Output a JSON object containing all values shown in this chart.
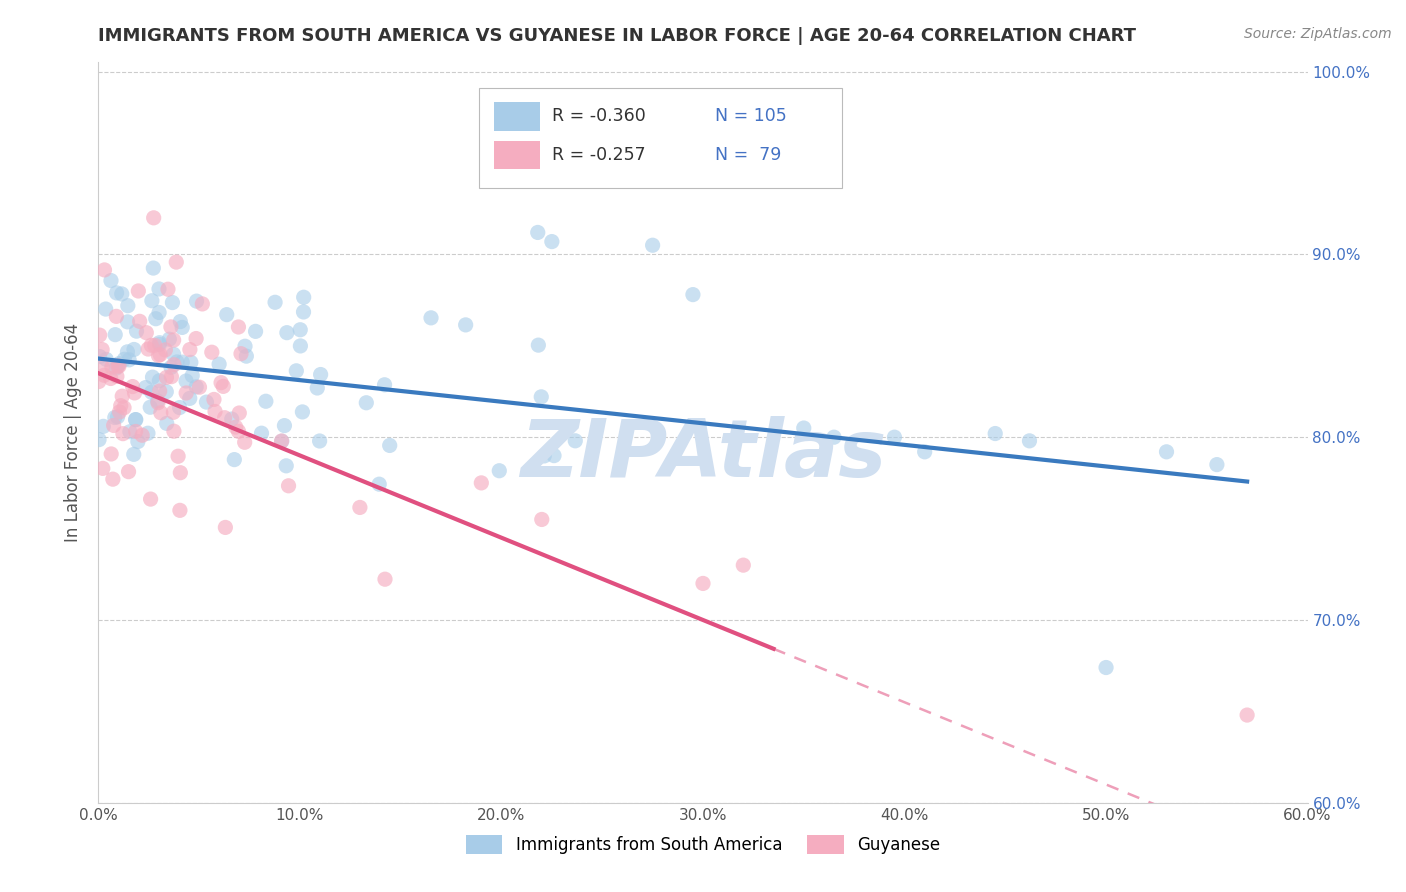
{
  "title": "IMMIGRANTS FROM SOUTH AMERICA VS GUYANESE IN LABOR FORCE | AGE 20-64 CORRELATION CHART",
  "source_text": "Source: ZipAtlas.com",
  "ylabel": "In Labor Force | Age 20-64",
  "xlim": [
    0.0,
    0.6
  ],
  "ylim": [
    0.6,
    1.005
  ],
  "xticks": [
    0.0,
    0.1,
    0.2,
    0.3,
    0.4,
    0.5,
    0.6
  ],
  "xticklabels": [
    "0.0%",
    "10.0%",
    "20.0%",
    "30.0%",
    "40.0%",
    "50.0%",
    "60.0%"
  ],
  "yticks": [
    0.6,
    0.7,
    0.8,
    0.9,
    1.0
  ],
  "yticklabels": [
    "60.0%",
    "70.0%",
    "80.0%",
    "90.0%",
    "100.0%"
  ],
  "legend_entries": [
    {
      "label": "Immigrants from South America",
      "R": "-0.360",
      "N": "105"
    },
    {
      "label": "Guyanese",
      "R": "-0.257",
      "N": " 79"
    }
  ],
  "sa_scatter_color": "#a8cce8",
  "sa_line_color": "#3a7abf",
  "guyanese_scatter_color": "#f5adc0",
  "guyanese_line_color": "#e05080",
  "legend_color_blue": "#a8cce8",
  "legend_color_pink": "#f5adc0",
  "label_color": "#4472c4",
  "watermark_color": "#d0dff0",
  "background_color": "#ffffff",
  "grid_color": "#cccccc",
  "title_color": "#333333",
  "axis_label_color": "#555555",
  "tick_color": "#555555"
}
